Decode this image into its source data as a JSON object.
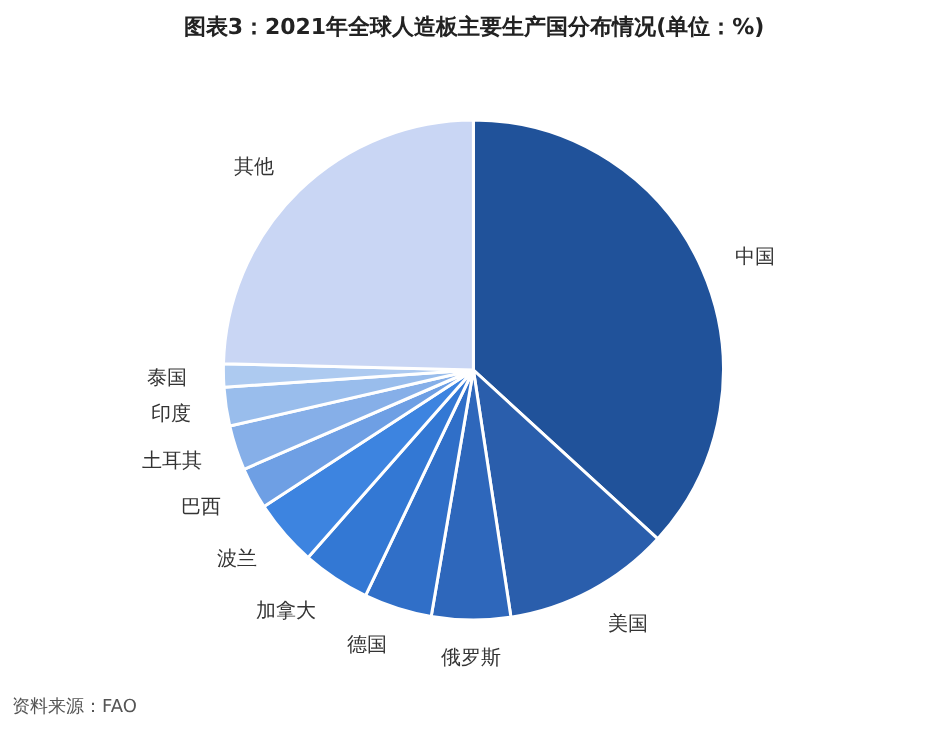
{
  "chart_data": {
    "type": "pie",
    "title": "图表3：2021年全球人造板主要生产国分布情况(单位：%)",
    "categories": [
      "中国",
      "美国",
      "俄罗斯",
      "德国",
      "加拿大",
      "波兰",
      "巴西",
      "土耳其",
      "印度",
      "泰国",
      "其他"
    ],
    "values": [
      36.8,
      10.8,
      5.1,
      4.4,
      4.4,
      4.3,
      2.7,
      2.9,
      2.5,
      1.5,
      24.6
    ],
    "colors": [
      "#20529a",
      "#2a5eac",
      "#2e67bb",
      "#306fc8",
      "#3378d4",
      "#3d84e0",
      "#6e9fe4",
      "#86afe8",
      "#99bdec",
      "#adcaf0",
      "#c9d6f4"
    ],
    "annotations": [
      "资料来源：FAO"
    ]
  }
}
